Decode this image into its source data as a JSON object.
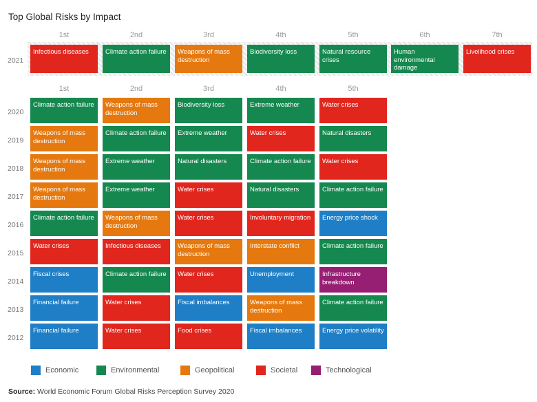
{
  "chart_data": {
    "type": "table",
    "title": "Top Global Risks by Impact",
    "categories": {
      "Economic": "#1f7fc6",
      "Environmental": "#15884f",
      "Geopolitical": "#e5790f",
      "Societal": "#e1261e",
      "Technological": "#961f73"
    },
    "top_ranks": [
      "1st",
      "2nd",
      "3rd",
      "4th",
      "5th",
      "6th",
      "7th"
    ],
    "top_row": {
      "year": "2021",
      "cells": [
        {
          "label": "Infectious diseases",
          "category": "Societal"
        },
        {
          "label": "Climate action failure",
          "category": "Environmental"
        },
        {
          "label": "Weapons of mass destruction",
          "category": "Geopolitical"
        },
        {
          "label": "Biodiversity loss",
          "category": "Environmental"
        },
        {
          "label": "Natural resource crises",
          "category": "Environmental"
        },
        {
          "label": "Human environmental damage",
          "category": "Environmental"
        },
        {
          "label": "Livelihood crises",
          "category": "Societal"
        }
      ]
    },
    "ranks": [
      "1st",
      "2nd",
      "3rd",
      "4th",
      "5th"
    ],
    "rows": [
      {
        "year": "2020",
        "cells": [
          {
            "label": "Climate action failure",
            "category": "Environmental"
          },
          {
            "label": "Weapons of mass destruction",
            "category": "Geopolitical"
          },
          {
            "label": "Biodiversity loss",
            "category": "Environmental"
          },
          {
            "label": "Extreme weather",
            "category": "Environmental"
          },
          {
            "label": "Water crises",
            "category": "Societal"
          }
        ]
      },
      {
        "year": "2019",
        "cells": [
          {
            "label": "Weapons of mass destruction",
            "category": "Geopolitical"
          },
          {
            "label": "Climate action failure",
            "category": "Environmental"
          },
          {
            "label": "Extreme weather",
            "category": "Environmental"
          },
          {
            "label": "Water crises",
            "category": "Societal"
          },
          {
            "label": "Natural disasters",
            "category": "Environmental"
          }
        ]
      },
      {
        "year": "2018",
        "cells": [
          {
            "label": "Weapons of mass destruction",
            "category": "Geopolitical"
          },
          {
            "label": "Extreme weather",
            "category": "Environmental"
          },
          {
            "label": "Natural disasters",
            "category": "Environmental"
          },
          {
            "label": "Climate action failure",
            "category": "Environmental"
          },
          {
            "label": "Water crises",
            "category": "Societal"
          }
        ]
      },
      {
        "year": "2017",
        "cells": [
          {
            "label": "Weapons of mass destruction",
            "category": "Geopolitical"
          },
          {
            "label": "Extreme weather",
            "category": "Environmental"
          },
          {
            "label": "Water crises",
            "category": "Societal"
          },
          {
            "label": "Natural disasters",
            "category": "Environmental"
          },
          {
            "label": "Climate action failure",
            "category": "Environmental"
          }
        ]
      },
      {
        "year": "2016",
        "cells": [
          {
            "label": "Climate action failure",
            "category": "Environmental"
          },
          {
            "label": "Weapons of mass destruction",
            "category": "Geopolitical"
          },
          {
            "label": "Water crises",
            "category": "Societal"
          },
          {
            "label": "Involuntary migration",
            "category": "Societal"
          },
          {
            "label": "Energy price shock",
            "category": "Economic"
          }
        ]
      },
      {
        "year": "2015",
        "cells": [
          {
            "label": "Water crises",
            "category": "Societal"
          },
          {
            "label": "Infectious diseases",
            "category": "Societal"
          },
          {
            "label": "Weapons of mass destruction",
            "category": "Geopolitical"
          },
          {
            "label": "Interstate conflict",
            "category": "Geopolitical"
          },
          {
            "label": "Climate action failure",
            "category": "Environmental"
          }
        ]
      },
      {
        "year": "2014",
        "cells": [
          {
            "label": "Fiscal crises",
            "category": "Economic"
          },
          {
            "label": "Climate action failure",
            "category": "Environmental"
          },
          {
            "label": "Water crises",
            "category": "Societal"
          },
          {
            "label": "Unemployment",
            "category": "Economic"
          },
          {
            "label": "Infrastructure breakdown",
            "category": "Technological"
          }
        ]
      },
      {
        "year": "2013",
        "cells": [
          {
            "label": "Financial failure",
            "category": "Economic"
          },
          {
            "label": "Water crises",
            "category": "Societal"
          },
          {
            "label": "Fiscal imbalances",
            "category": "Economic"
          },
          {
            "label": "Weapons of mass destruction",
            "category": "Geopolitical"
          },
          {
            "label": "Climate action failure",
            "category": "Environmental"
          }
        ]
      },
      {
        "year": "2012",
        "cells": [
          {
            "label": "Financial failure",
            "category": "Economic"
          },
          {
            "label": "Water crises",
            "category": "Societal"
          },
          {
            "label": "Food crises",
            "category": "Societal"
          },
          {
            "label": "Fiscal imbalances",
            "category": "Economic"
          },
          {
            "label": "Energy price volatility",
            "category": "Economic"
          }
        ]
      }
    ],
    "legend": [
      "Economic",
      "Environmental",
      "Geopolitical",
      "Societal",
      "Technological"
    ],
    "legend_placement": "bottom"
  },
  "source": {
    "prefix": "Source:",
    "text": "World Economic Forum Global Risks Perception Survey 2020"
  }
}
